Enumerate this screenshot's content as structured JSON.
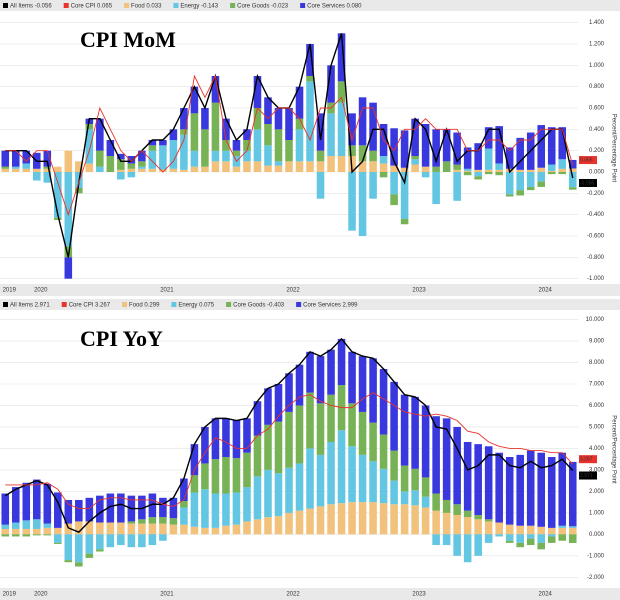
{
  "chart_data": [
    {
      "type": "bar",
      "stacked": true,
      "title": "CPI MoM",
      "y_label": "Percent/Percentage Point",
      "grid": true,
      "categories": [
        "2019",
        null,
        null,
        "2020",
        null,
        null,
        null,
        null,
        null,
        null,
        null,
        null,
        null,
        null,
        null,
        "2021",
        null,
        null,
        null,
        null,
        null,
        null,
        null,
        null,
        null,
        null,
        null,
        "2022",
        null,
        null,
        null,
        null,
        null,
        null,
        null,
        null,
        null,
        null,
        null,
        "2023",
        null,
        null,
        null,
        null,
        null,
        null,
        null,
        null,
        null,
        null,
        null,
        "2024",
        null,
        null,
        null
      ],
      "ylim": [
        -1.05,
        1.5
      ],
      "yticks": [
        {
          "value": -1,
          "label": "-1.000"
        },
        {
          "value": -0.8,
          "label": "-0.800"
        },
        {
          "value": -0.6,
          "label": "-0.600"
        },
        {
          "value": -0.4,
          "label": "-0.400"
        },
        {
          "value": -0.2,
          "label": "-0.200"
        },
        {
          "value": 0,
          "label": "0.000"
        },
        {
          "value": 0.2,
          "label": "0.200"
        },
        {
          "value": 0.4,
          "label": "0.400"
        },
        {
          "value": 0.6,
          "label": "0.600"
        },
        {
          "value": 0.8,
          "label": "0.800"
        },
        {
          "value": 1,
          "label": "1.000"
        },
        {
          "value": 1.2,
          "label": "1.200"
        },
        {
          "value": 1.4,
          "label": "1.400"
        }
      ],
      "series": [
        {
          "name": "All Items -0.056",
          "type": "line",
          "color": "#000000",
          "values": [
            0.2,
            0.2,
            0.2,
            0.1,
            0.1,
            -0.4,
            -0.8,
            -0.1,
            0.5,
            0.5,
            0.3,
            0.1,
            0.1,
            0.2,
            0.3,
            0.3,
            0.4,
            0.6,
            0.8,
            0.6,
            0.9,
            0.5,
            0.3,
            0.4,
            0.9,
            0.7,
            0.6,
            0.6,
            0.8,
            1.2,
            0.3,
            1.0,
            1.3,
            0,
            0.1,
            0.4,
            0.4,
            0.1,
            -0.1,
            0.5,
            0.4,
            0.1,
            0.4,
            0.1,
            0.2,
            0.2,
            0.4,
            0.4,
            0,
            0.1,
            0.2,
            0.3,
            0.4,
            0.4,
            -0.056
          ]
        },
        {
          "name": "Core CPI 0.065",
          "type": "line",
          "color": "#e8322b",
          "values": [
            0.2,
            0.2,
            0.1,
            0.2,
            0.2,
            -0.1,
            -0.4,
            -0.1,
            0.2,
            0.6,
            0.4,
            0.2,
            0.1,
            0.2,
            0.1,
            0,
            0.1,
            0.3,
            0.9,
            0.7,
            0.9,
            0.3,
            0.1,
            0.2,
            0.6,
            0.5,
            0.6,
            0.6,
            0.5,
            0.3,
            0.6,
            0.6,
            0.7,
            0.3,
            0.6,
            0.6,
            0.3,
            0.2,
            0.4,
            0.4,
            0.5,
            0.4,
            0.4,
            0.4,
            0.2,
            0.2,
            0.3,
            0.3,
            0.2,
            0.3,
            0.3,
            0.4,
            0.4,
            0.4,
            0.065
          ]
        },
        {
          "name": "Food 0.033",
          "type": "bar",
          "color": "#f2c27c",
          "values": [
            0.03,
            0.03,
            0.03,
            0.03,
            0.03,
            0.05,
            0.2,
            0.1,
            0.08,
            0,
            0,
            0.02,
            0.03,
            0.03,
            0.03,
            0.02,
            0.03,
            0.02,
            0.05,
            0.05,
            0.1,
            0.1,
            0.05,
            0.1,
            0.1,
            0.06,
            0.06,
            0.1,
            0.1,
            0.1,
            0.1,
            0.15,
            0.15,
            0.15,
            0.1,
            0.1,
            0.08,
            0.06,
            0.04,
            0.07,
            0.05,
            0,
            0,
            0.02,
            0.01,
            0.02,
            0.02,
            0.02,
            0.03,
            0.02,
            0.02,
            0.04,
            0.01,
            0.03,
            0.033
          ]
        },
        {
          "name": "Energy -0.143",
          "type": "bar",
          "color": "#63c6e2",
          "values": [
            0,
            0.02,
            0.05,
            -0.08,
            -0.1,
            -0.43,
            -0.7,
            -0.15,
            0.32,
            0.05,
            0,
            -0.07,
            -0.05,
            0.02,
            0.17,
            0.23,
            0.27,
            0.33,
            0.15,
            0,
            0.1,
            0.1,
            0.1,
            0.1,
            0.3,
            0.19,
            0.04,
            0,
            0.3,
            0.75,
            -0.25,
            0.4,
            0.5,
            -0.55,
            -0.6,
            -0.25,
            0.07,
            -0.21,
            -0.44,
            0.05,
            -0.05,
            -0.3,
            0,
            -0.27,
            0.02,
            -0.04,
            0.2,
            0.06,
            -0.21,
            -0.17,
            -0.14,
            -0.09,
            0.06,
            0.09,
            -0.143
          ]
        },
        {
          "name": "Core Goods -0.023",
          "type": "bar",
          "color": "#77b356",
          "values": [
            0.02,
            0,
            0,
            0,
            0.02,
            -0.02,
            -0.1,
            -0.05,
            0.05,
            0.15,
            0.15,
            0.1,
            0.05,
            0.05,
            0.05,
            0,
            0,
            0.05,
            0.35,
            0.35,
            0.45,
            0.1,
            0.05,
            0.1,
            0.2,
            0.2,
            0.3,
            0.2,
            0.1,
            0.05,
            0.1,
            0.1,
            0.2,
            0.1,
            0.15,
            0.1,
            -0.05,
            -0.1,
            -0.05,
            0.03,
            0,
            0.05,
            0.1,
            0.05,
            -0.03,
            -0.03,
            -0.02,
            -0.03,
            -0.02,
            -0.05,
            -0.03,
            -0.05,
            -0.02,
            -0.02,
            -0.023
          ]
        },
        {
          "name": "Core Services 0.080",
          "type": "bar",
          "color": "#3838de",
          "values": [
            0.15,
            0.15,
            0.12,
            0.15,
            0.15,
            0,
            -0.2,
            0,
            0.05,
            0.3,
            0.15,
            0.05,
            0.07,
            0.1,
            0.05,
            0.05,
            0.1,
            0.2,
            0.25,
            0.2,
            0.25,
            0.2,
            0.1,
            0.1,
            0.3,
            0.25,
            0.2,
            0.3,
            0.3,
            0.3,
            0.35,
            0.35,
            0.45,
            0.3,
            0.45,
            0.45,
            0.3,
            0.35,
            0.35,
            0.35,
            0.4,
            0.35,
            0.3,
            0.3,
            0.2,
            0.25,
            0.2,
            0.35,
            0.2,
            0.3,
            0.35,
            0.4,
            0.35,
            0.3,
            0.08
          ]
        }
      ]
    },
    {
      "type": "bar",
      "stacked": true,
      "title": "CPI YoY",
      "y_label": "Percent/Percentage Point",
      "grid": true,
      "categories": [
        "2019",
        null,
        null,
        "2020",
        null,
        null,
        null,
        null,
        null,
        null,
        null,
        null,
        null,
        null,
        null,
        "2021",
        null,
        null,
        null,
        null,
        null,
        null,
        null,
        null,
        null,
        null,
        null,
        "2022",
        null,
        null,
        null,
        null,
        null,
        null,
        null,
        null,
        null,
        null,
        null,
        "2023",
        null,
        null,
        null,
        null,
        null,
        null,
        null,
        null,
        null,
        null,
        null,
        "2024",
        null,
        null,
        null
      ],
      "ylim": [
        -2.5,
        10.4
      ],
      "yticks": [
        {
          "value": -2,
          "label": "-2.000"
        },
        {
          "value": -1,
          "label": "-1.000"
        },
        {
          "value": 0,
          "label": "0.000"
        },
        {
          "value": 1,
          "label": "1.000"
        },
        {
          "value": 2,
          "label": "2.000"
        },
        {
          "value": 3,
          "label": "3.000"
        },
        {
          "value": 4,
          "label": "4.000"
        },
        {
          "value": 5,
          "label": "5.000"
        },
        {
          "value": 6,
          "label": "6.000"
        },
        {
          "value": 7,
          "label": "7.000"
        },
        {
          "value": 8,
          "label": "8.000"
        },
        {
          "value": 9,
          "label": "9.000"
        },
        {
          "value": 10,
          "label": "10.000"
        }
      ],
      "series": [
        {
          "name": "All Items 2.971",
          "type": "line",
          "color": "#000000",
          "values": [
            1.8,
            2.1,
            2.3,
            2.5,
            2.3,
            1.5,
            0.3,
            0.1,
            0.6,
            1.0,
            1.3,
            1.4,
            1.2,
            1.2,
            1.4,
            1.4,
            1.7,
            2.6,
            4.2,
            5.0,
            5.4,
            5.4,
            5.3,
            5.4,
            6.2,
            6.8,
            7.0,
            7.5,
            7.9,
            8.5,
            8.3,
            8.6,
            9.1,
            8.5,
            8.3,
            8.2,
            7.7,
            7.1,
            6.5,
            6.4,
            6.0,
            5.0,
            4.9,
            4.0,
            3.0,
            3.2,
            3.7,
            3.7,
            3.2,
            3.1,
            3.4,
            3.1,
            3.2,
            3.5,
            2.971
          ]
        },
        {
          "name": "Core CPI 3.267",
          "type": "line",
          "color": "#e8322b",
          "values": [
            2.3,
            2.3,
            2.3,
            2.3,
            2.4,
            2.1,
            1.4,
            1.2,
            1.2,
            1.6,
            1.7,
            1.7,
            1.6,
            1.6,
            1.6,
            1.4,
            1.3,
            1.6,
            3.0,
            3.8,
            4.5,
            4.3,
            4.0,
            4.0,
            4.6,
            4.9,
            5.5,
            6.0,
            6.4,
            6.5,
            6.2,
            6.0,
            5.9,
            5.9,
            6.3,
            6.6,
            6.3,
            6.0,
            5.7,
            5.6,
            5.5,
            5.6,
            5.5,
            5.3,
            4.8,
            4.7,
            4.3,
            4.1,
            4.0,
            4.0,
            3.9,
            3.9,
            3.8,
            3.8,
            3.267
          ]
        },
        {
          "name": "Food 0.299",
          "type": "bar",
          "color": "#f2c27c",
          "values": [
            0.25,
            0.25,
            0.25,
            0.25,
            0.3,
            0.3,
            0.5,
            0.6,
            0.6,
            0.55,
            0.55,
            0.55,
            0.5,
            0.5,
            0.5,
            0.5,
            0.45,
            0.45,
            0.35,
            0.3,
            0.3,
            0.4,
            0.45,
            0.6,
            0.7,
            0.8,
            0.85,
            1.0,
            1.1,
            1.2,
            1.3,
            1.4,
            1.45,
            1.5,
            1.5,
            1.5,
            1.45,
            1.4,
            1.4,
            1.35,
            1.25,
            1.1,
            1.0,
            0.9,
            0.8,
            0.7,
            0.6,
            0.55,
            0.45,
            0.4,
            0.4,
            0.35,
            0.3,
            0.3,
            0.299
          ]
        },
        {
          "name": "Energy 0.075",
          "type": "bar",
          "color": "#63c6e2",
          "values": [
            0.2,
            0.3,
            0.4,
            0.45,
            0.2,
            -0.4,
            -1.2,
            -1.3,
            -0.9,
            -0.7,
            -0.6,
            -0.5,
            -0.6,
            -0.6,
            -0.5,
            -0.3,
            0,
            0.8,
            1.6,
            1.8,
            1.6,
            1.5,
            1.5,
            1.6,
            2.0,
            2.2,
            2.0,
            2.1,
            2.2,
            2.8,
            2.4,
            2.9,
            3.4,
            2.6,
            2.2,
            1.9,
            1.6,
            1.1,
            0.6,
            0.7,
            0.5,
            -0.5,
            -0.5,
            -1.0,
            -1.3,
            -1.0,
            -0.4,
            -0.1,
            -0.3,
            -0.4,
            -0.2,
            -0.4,
            -0.1,
            0.1,
            0.075
          ]
        },
        {
          "name": "Core Goods -0.403",
          "type": "bar",
          "color": "#77b356",
          "values": [
            -0.1,
            -0.1,
            -0.1,
            -0.05,
            -0.05,
            -0.05,
            -0.1,
            -0.2,
            -0.2,
            -0.1,
            0,
            0,
            0.1,
            0.2,
            0.3,
            0.3,
            0.3,
            0.3,
            0.8,
            1.2,
            1.6,
            1.7,
            1.6,
            1.6,
            1.9,
            2.1,
            2.4,
            2.6,
            2.7,
            2.6,
            2.4,
            2.2,
            2.1,
            2.0,
            2.0,
            1.8,
            1.6,
            1.4,
            1.2,
            1.0,
            0.9,
            0.8,
            0.6,
            0.5,
            0.3,
            0.2,
            0.1,
            0,
            -0.1,
            -0.2,
            -0.3,
            -0.3,
            -0.3,
            -0.3,
            -0.403
          ]
        },
        {
          "name": "Core Services 2.999",
          "type": "bar",
          "color": "#3838de",
          "values": [
            1.45,
            1.65,
            1.75,
            1.85,
            1.85,
            1.65,
            1.1,
            1.0,
            1.1,
            1.25,
            1.35,
            1.35,
            1.2,
            1.1,
            1.1,
            0.9,
            0.95,
            1.05,
            1.45,
            1.7,
            1.9,
            1.8,
            1.75,
            1.6,
            1.6,
            1.7,
            1.75,
            1.8,
            1.9,
            1.9,
            2.2,
            2.1,
            2.15,
            2.4,
            2.6,
            3.0,
            3.05,
            3.2,
            3.3,
            3.35,
            3.35,
            3.6,
            3.8,
            3.6,
            3.2,
            3.3,
            3.4,
            3.25,
            3.15,
            3.3,
            3.5,
            3.45,
            3.3,
            3.4,
            2.999
          ]
        }
      ]
    }
  ]
}
